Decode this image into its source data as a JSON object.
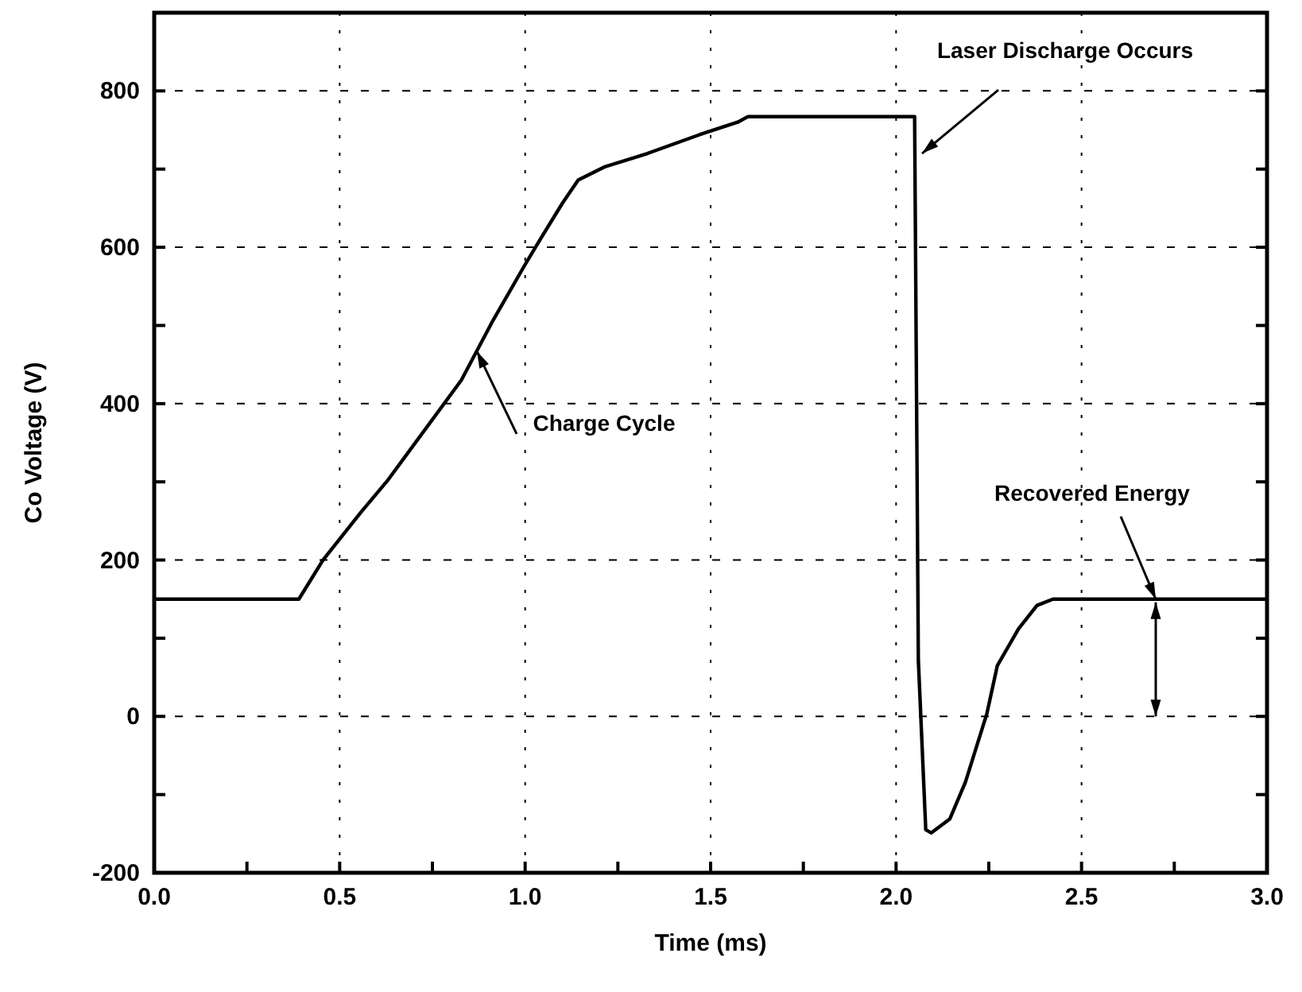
{
  "chart_data": {
    "type": "line",
    "xlabel": "Time (ms)",
    "ylabel": "Co Voltage (V)",
    "x": [
      0,
      0.39,
      0.455,
      0.557,
      0.628,
      0.828,
      0.914,
      1.0,
      1.043,
      1.1,
      1.143,
      1.215,
      1.33,
      1.47,
      1.573,
      1.6,
      2.05,
      2.06,
      2.08,
      2.095,
      2.145,
      2.187,
      2.245,
      2.273,
      2.33,
      2.38,
      2.423,
      3.0
    ],
    "series": [
      {
        "color": "#000000",
        "values": [
          150,
          150,
          200,
          261,
          301,
          430,
          507,
          578,
          612,
          656,
          686,
          703,
          720,
          744,
          760,
          767,
          767,
          72,
          -145,
          -149,
          -131,
          -84,
          4,
          65,
          112,
          142,
          150,
          150
        ]
      }
    ],
    "xlim": [
      0,
      3.0
    ],
    "ylim": [
      -200,
      900
    ],
    "xticks": [
      {
        "value": 0,
        "label": "0.0"
      },
      {
        "value": 0.25,
        "label": null
      },
      {
        "value": 0.5,
        "label": "0.5"
      },
      {
        "value": 0.75,
        "label": null
      },
      {
        "value": 1,
        "label": "1.0"
      },
      {
        "value": 1.25,
        "label": null
      },
      {
        "value": 1.5,
        "label": "1.5"
      },
      {
        "value": 1.75,
        "label": null
      },
      {
        "value": 2,
        "label": "2.0"
      },
      {
        "value": 2.25,
        "label": null
      },
      {
        "value": 2.5,
        "label": "2.5"
      },
      {
        "value": 2.75,
        "label": null
      },
      {
        "value": 3,
        "label": "3.0"
      }
    ],
    "yticks": [
      -200,
      {
        "value": -100,
        "label": null
      },
      0,
      {
        "value": 100,
        "label": null
      },
      200,
      {
        "value": 300,
        "label": null
      },
      400,
      {
        "value": 500,
        "label": null
      },
      600,
      {
        "value": 700,
        "label": null
      },
      800
    ],
    "grid": true,
    "marker": "none",
    "line_style": "solid",
    "annotations": [
      {
        "text": "Laser Discharge Occurs",
        "x": 2.07,
        "y": 720
      },
      {
        "text": "Charge Cycle",
        "x": 0.87,
        "y": 467
      },
      {
        "text": "Recovered Energy",
        "x": 2.7,
        "y": 150
      }
    ]
  }
}
